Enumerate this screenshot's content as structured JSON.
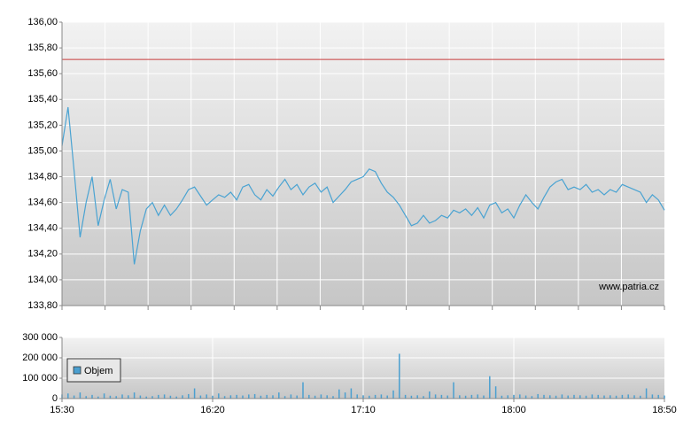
{
  "chart_data": [
    {
      "type": "line",
      "x": [
        "15:30",
        "15:32",
        "15:34",
        "15:36",
        "15:38",
        "15:40",
        "15:42",
        "15:44",
        "15:46",
        "15:48",
        "15:50",
        "15:52",
        "15:54",
        "15:56",
        "15:58",
        "16:00",
        "16:02",
        "16:04",
        "16:06",
        "16:08",
        "16:10",
        "16:12",
        "16:14",
        "16:16",
        "16:18",
        "16:20",
        "16:22",
        "16:24",
        "16:26",
        "16:28",
        "16:30",
        "16:32",
        "16:34",
        "16:36",
        "16:38",
        "16:40",
        "16:42",
        "16:44",
        "16:46",
        "16:48",
        "16:50",
        "16:52",
        "16:54",
        "16:56",
        "16:58",
        "17:00",
        "17:02",
        "17:04",
        "17:06",
        "17:08",
        "17:10",
        "17:12",
        "17:14",
        "17:16",
        "17:18",
        "17:20",
        "17:22",
        "17:24",
        "17:26",
        "17:28",
        "17:30",
        "17:32",
        "17:34",
        "17:36",
        "17:38",
        "17:40",
        "17:42",
        "17:44",
        "17:46",
        "17:48",
        "17:50",
        "17:52",
        "17:54",
        "17:56",
        "17:58",
        "18:00",
        "18:02",
        "18:04",
        "18:06",
        "18:08",
        "18:10",
        "18:12",
        "18:14",
        "18:16",
        "18:18",
        "18:20",
        "18:22",
        "18:24",
        "18:26",
        "18:28",
        "18:30",
        "18:32",
        "18:34",
        "18:36",
        "18:38",
        "18:40",
        "18:42",
        "18:44",
        "18:46",
        "18:48",
        "18:50"
      ],
      "series": [
        {
          "color": "#4aa3d2",
          "values": [
            135.04,
            135.34,
            134.85,
            134.33,
            134.6,
            134.8,
            134.42,
            134.62,
            134.78,
            134.55,
            134.7,
            134.68,
            134.12,
            134.38,
            134.55,
            134.6,
            134.5,
            134.58,
            134.5,
            134.55,
            134.62,
            134.7,
            134.72,
            134.65,
            134.58,
            134.62,
            134.66,
            134.64,
            134.68,
            134.62,
            134.72,
            134.74,
            134.66,
            134.62,
            134.7,
            134.65,
            134.72,
            134.78,
            134.7,
            134.74,
            134.66,
            134.72,
            134.75,
            134.68,
            134.72,
            134.6,
            134.65,
            134.7,
            134.76,
            134.78,
            134.8,
            134.86,
            134.84,
            134.75,
            134.68,
            134.64,
            134.58,
            134.5,
            134.42,
            134.44,
            134.5,
            134.44,
            134.46,
            134.5,
            134.48,
            134.54,
            134.52,
            134.55,
            134.5,
            134.56,
            134.48,
            134.58,
            134.6,
            134.52,
            134.55,
            134.48,
            134.58,
            134.66,
            134.6,
            134.55,
            134.64,
            134.72,
            134.76,
            134.78,
            134.7,
            134.72,
            134.7,
            134.74,
            134.68,
            134.7,
            134.66,
            134.7,
            134.68,
            134.74,
            134.72,
            134.7,
            134.68,
            134.6,
            134.66,
            134.62,
            134.54
          ]
        }
      ],
      "xlim": [
        "15:30",
        "18:50"
      ],
      "ylim": [
        133.8,
        136
      ],
      "yticks": [
        {
          "value": 133.8,
          "label": "133,80"
        },
        {
          "value": 134,
          "label": "134,00"
        },
        {
          "value": 134.2,
          "label": "134,20"
        },
        {
          "value": 134.4,
          "label": "134,40"
        },
        {
          "value": 134.6,
          "label": "134,60"
        },
        {
          "value": 134.8,
          "label": "134,80"
        },
        {
          "value": 135,
          "label": "135,00"
        },
        {
          "value": 135.2,
          "label": "135,20"
        },
        {
          "value": 135.4,
          "label": "135,40"
        },
        {
          "value": 135.6,
          "label": "135,60"
        },
        {
          "value": 135.8,
          "label": "135,80"
        },
        {
          "value": 136,
          "label": "136,00"
        }
      ],
      "reference_line": {
        "value": 135.71,
        "color": "#c83c3c"
      },
      "annotation": "www.patria.cz",
      "grid": true
    },
    {
      "type": "bar",
      "x": [
        "15:30",
        "15:32",
        "15:34",
        "15:36",
        "15:38",
        "15:40",
        "15:42",
        "15:44",
        "15:46",
        "15:48",
        "15:50",
        "15:52",
        "15:54",
        "15:56",
        "15:58",
        "16:00",
        "16:02",
        "16:04",
        "16:06",
        "16:08",
        "16:10",
        "16:12",
        "16:14",
        "16:16",
        "16:18",
        "16:20",
        "16:22",
        "16:24",
        "16:26",
        "16:28",
        "16:30",
        "16:32",
        "16:34",
        "16:36",
        "16:38",
        "16:40",
        "16:42",
        "16:44",
        "16:46",
        "16:48",
        "16:50",
        "16:52",
        "16:54",
        "16:56",
        "16:58",
        "17:00",
        "17:02",
        "17:04",
        "17:06",
        "17:08",
        "17:10",
        "17:12",
        "17:14",
        "17:16",
        "17:18",
        "17:20",
        "17:22",
        "17:24",
        "17:26",
        "17:28",
        "17:30",
        "17:32",
        "17:34",
        "17:36",
        "17:38",
        "17:40",
        "17:42",
        "17:44",
        "17:46",
        "17:48",
        "17:50",
        "17:52",
        "17:54",
        "17:56",
        "17:58",
        "18:00",
        "18:02",
        "18:04",
        "18:06",
        "18:08",
        "18:10",
        "18:12",
        "18:14",
        "18:16",
        "18:18",
        "18:20",
        "18:22",
        "18:24",
        "18:26",
        "18:28",
        "18:30",
        "18:32",
        "18:34",
        "18:36",
        "18:38",
        "18:40",
        "18:42",
        "18:44",
        "18:46",
        "18:48",
        "18:50"
      ],
      "series": [
        {
          "name": "Objem",
          "color": "#4a9fd0",
          "values": [
            20000,
            25000,
            15000,
            30000,
            12000,
            18000,
            10000,
            25000,
            14000,
            12000,
            20000,
            16000,
            30000,
            15000,
            10000,
            12000,
            18000,
            20000,
            14000,
            10000,
            16000,
            22000,
            50000,
            15000,
            20000,
            14000,
            25000,
            12000,
            16000,
            18000,
            15000,
            20000,
            22000,
            14000,
            18000,
            16000,
            30000,
            12000,
            20000,
            15000,
            80000,
            18000,
            14000,
            20000,
            16000,
            12000,
            45000,
            30000,
            50000,
            20000,
            16000,
            14000,
            18000,
            20000,
            15000,
            40000,
            220000,
            18000,
            14000,
            16000,
            12000,
            35000,
            20000,
            18000,
            15000,
            80000,
            16000,
            14000,
            18000,
            20000,
            15000,
            110000,
            60000,
            14000,
            16000,
            18000,
            20000,
            15000,
            12000,
            22000,
            18000,
            16000,
            14000,
            20000,
            15000,
            18000,
            16000,
            14000,
            20000,
            18000,
            15000,
            16000,
            14000,
            18000,
            20000,
            16000,
            14000,
            50000,
            20000,
            18000,
            15000
          ]
        }
      ],
      "xlim": [
        "15:30",
        "18:50"
      ],
      "xticks": [
        "15:30",
        "16:20",
        "17:10",
        "18:00",
        "18:50"
      ],
      "ylim": [
        0,
        300000
      ],
      "yticks": [
        0,
        {
          "value": 100000,
          "label": "100 000"
        },
        {
          "value": 200000,
          "label": "200 000"
        },
        {
          "value": 300000,
          "label": "300 000"
        }
      ],
      "grid": true
    }
  ]
}
